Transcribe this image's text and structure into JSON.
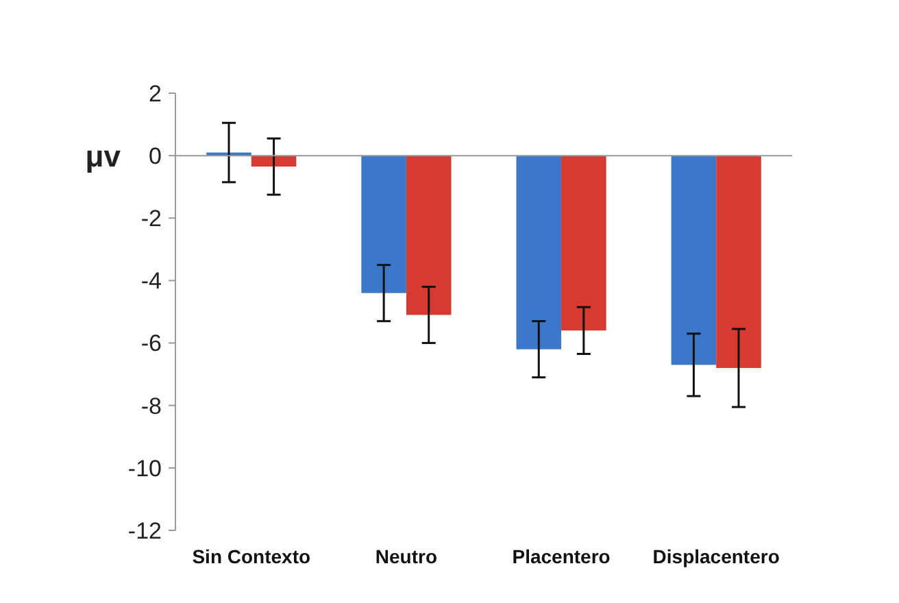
{
  "chart_data": {
    "type": "bar",
    "ylabel": "μv",
    "categories": [
      "Sin Contexto",
      "Neutro",
      "Placentero",
      "Displacentero"
    ],
    "series": [
      {
        "color": "#3b78c9",
        "values": [
          0.1,
          -4.4,
          -6.2,
          -6.7
        ],
        "errors": [
          0.95,
          0.9,
          0.9,
          1.0
        ]
      },
      {
        "color": "#d63a30",
        "values": [
          -0.35,
          -5.1,
          -5.6,
          -6.8
        ],
        "errors": [
          0.9,
          0.9,
          0.75,
          1.25
        ]
      }
    ],
    "ylim": [
      -12,
      2
    ],
    "yticks": [
      -12,
      -10,
      -8,
      -6,
      -4,
      -2,
      0,
      2
    ],
    "legend": false
  }
}
